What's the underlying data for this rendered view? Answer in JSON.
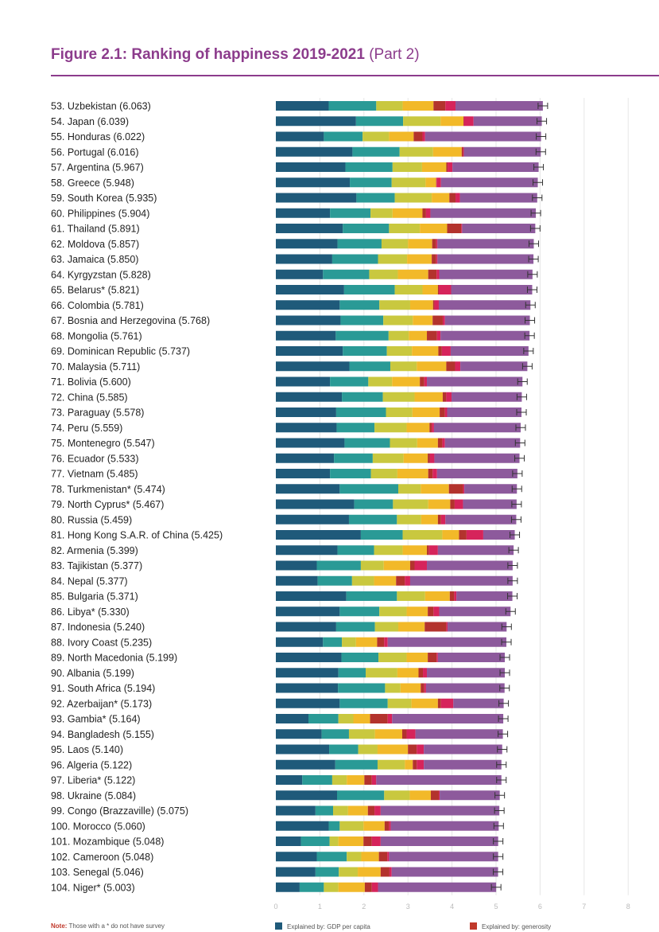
{
  "figure": {
    "title_main": "Figure 2.1: Ranking of happiness 2019-2021",
    "title_part": "(Part 2)"
  },
  "footer": {
    "note_label": "Note:",
    "note_text": "Those with a * do not have survey",
    "legend": [
      {
        "label": "Explained by: GDP per capita",
        "color": "#1f5a7a"
      },
      {
        "label": "Explained by: generosity",
        "color": "#c0392b"
      }
    ]
  },
  "colors": {
    "gdp": "#1f5a7a",
    "social_support": "#2a9a96",
    "healthy_life": "#c9c83f",
    "freedom": "#f2b929",
    "generosity": "#b3332d",
    "corruption": "#d6245b",
    "dystopia": "#8d5a9c",
    "error_bar": "#333333",
    "gridline": "#e6e6e6"
  },
  "chart_data": {
    "type": "bar",
    "orientation": "horizontal",
    "stacked": true,
    "xlim": [
      0,
      8
    ],
    "x_ticks": [
      "0",
      "1",
      "2",
      "3",
      "4",
      "5",
      "6",
      "7",
      "8"
    ],
    "grid": true,
    "error_bars": true,
    "segments": [
      "gdp",
      "social_support",
      "healthy_life",
      "freedom",
      "generosity",
      "corruption",
      "dystopia"
    ],
    "rows": [
      {
        "label": "53.  Uzbekistan (6.063)",
        "total": 6.063,
        "parts": [
          1.2,
          1.08,
          0.6,
          0.7,
          0.27,
          0.23
        ]
      },
      {
        "label": "54.  Japan (6.039)",
        "total": 6.039,
        "parts": [
          1.82,
          1.07,
          0.85,
          0.52,
          0.01,
          0.22
        ]
      },
      {
        "label": "55.  Honduras (6.022)",
        "total": 6.022,
        "parts": [
          1.09,
          0.88,
          0.6,
          0.56,
          0.2,
          0.06
        ]
      },
      {
        "label": "56.  Portugal (6.016)",
        "total": 6.016,
        "parts": [
          1.74,
          1.07,
          0.76,
          0.65,
          0.03,
          0.02
        ]
      },
      {
        "label": "57.  Argentina (5.967)",
        "total": 5.967,
        "parts": [
          1.58,
          1.07,
          0.67,
          0.55,
          0.03,
          0.11
        ]
      },
      {
        "label": "58.  Greece (5.948)",
        "total": 5.948,
        "parts": [
          1.68,
          0.95,
          0.77,
          0.24,
          0.01,
          0.1
        ]
      },
      {
        "label": "59.  South Korea (5.935)",
        "total": 5.935,
        "parts": [
          1.83,
          0.87,
          0.84,
          0.4,
          0.14,
          0.1
        ]
      },
      {
        "label": "60.  Philippines (5.904)",
        "total": 5.904,
        "parts": [
          1.23,
          0.92,
          0.5,
          0.68,
          0.08,
          0.1
        ]
      },
      {
        "label": "61.  Thailand (5.891)",
        "total": 5.891,
        "parts": [
          1.52,
          1.05,
          0.7,
          0.62,
          0.32,
          0.02
        ]
      },
      {
        "label": "62.  Moldova (5.857)",
        "total": 5.857,
        "parts": [
          1.4,
          1.0,
          0.6,
          0.55,
          0.09,
          0.03
        ]
      },
      {
        "label": "63.  Jamaica (5.850)",
        "total": 5.85,
        "parts": [
          1.28,
          1.04,
          0.66,
          0.56,
          0.1,
          0.03
        ]
      },
      {
        "label": "64.  Kyrgyzstan (5.828)",
        "total": 5.828,
        "parts": [
          1.07,
          1.05,
          0.65,
          0.69,
          0.19,
          0.06
        ]
      },
      {
        "label": "65.  Belarus* (5.821)",
        "total": 5.821,
        "parts": [
          1.55,
          1.15,
          0.63,
          0.35,
          0.02,
          0.28
        ]
      },
      {
        "label": "66.  Colombia (5.781)",
        "total": 5.781,
        "parts": [
          1.45,
          0.9,
          0.7,
          0.52,
          0.03,
          0.1
        ]
      },
      {
        "label": "67.  Bosnia and Herzegovina (5.768)",
        "total": 5.768,
        "parts": [
          1.47,
          0.97,
          0.67,
          0.45,
          0.23,
          0.05
        ]
      },
      {
        "label": "68.  Mongolia (5.761)",
        "total": 5.761,
        "parts": [
          1.36,
          1.2,
          0.46,
          0.41,
          0.23,
          0.08
        ]
      },
      {
        "label": "69.  Dominican Republic (5.737)",
        "total": 5.737,
        "parts": [
          1.52,
          1.0,
          0.57,
          0.6,
          0.08,
          0.2
        ]
      },
      {
        "label": "70.  Malaysia (5.711)",
        "total": 5.711,
        "parts": [
          1.67,
          0.93,
          0.6,
          0.67,
          0.2,
          0.12
        ]
      },
      {
        "label": "71.  Bolivia (5.600)",
        "total": 5.6,
        "parts": [
          1.23,
          0.87,
          0.54,
          0.63,
          0.1,
          0.06
        ]
      },
      {
        "label": "72.  China (5.585)",
        "total": 5.585,
        "parts": [
          1.5,
          0.93,
          0.72,
          0.64,
          0.08,
          0.12
        ]
      },
      {
        "label": "73.  Paraguay (5.578)",
        "total": 5.578,
        "parts": [
          1.37,
          1.13,
          0.6,
          0.62,
          0.12,
          0.05
        ]
      },
      {
        "label": "74.  Peru (5.559)",
        "total": 5.559,
        "parts": [
          1.38,
          0.86,
          0.73,
          0.52,
          0.05,
          0.05
        ]
      },
      {
        "label": "75.  Montenegro (5.547)",
        "total": 5.547,
        "parts": [
          1.56,
          1.03,
          0.62,
          0.47,
          0.1,
          0.06
        ]
      },
      {
        "label": "76.  Ecuador (5.533)",
        "total": 5.533,
        "parts": [
          1.32,
          0.88,
          0.7,
          0.55,
          0.05,
          0.1
        ]
      },
      {
        "label": "77.  Vietnam (5.485)",
        "total": 5.485,
        "parts": [
          1.23,
          0.93,
          0.6,
          0.7,
          0.1,
          0.1
        ]
      },
      {
        "label": "78.  Turkmenistan* (5.474)",
        "total": 5.474,
        "parts": [
          1.45,
          1.33,
          0.51,
          0.64,
          0.32,
          0.03
        ]
      },
      {
        "label": "79.  North Cyprus* (5.467)",
        "total": 5.467,
        "parts": [
          1.78,
          0.88,
          0.8,
          0.5,
          0.1,
          0.19
        ]
      },
      {
        "label": "80.  Russia (5.459)",
        "total": 5.459,
        "parts": [
          1.66,
          1.09,
          0.55,
          0.38,
          0.07,
          0.1
        ]
      },
      {
        "label": "81.  Hong Kong S.A.R. of China (5.425)",
        "total": 5.425,
        "parts": [
          1.93,
          0.95,
          0.9,
          0.38,
          0.17,
          0.38
        ]
      },
      {
        "label": "82.  Armenia (5.399)",
        "total": 5.399,
        "parts": [
          1.4,
          0.83,
          0.65,
          0.55,
          0.05,
          0.2
        ]
      },
      {
        "label": "83.  Tajikistan (5.377)",
        "total": 5.377,
        "parts": [
          0.93,
          1.0,
          0.52,
          0.6,
          0.1,
          0.28
        ]
      },
      {
        "label": "84.  Nepal (5.377)",
        "total": 5.377,
        "parts": [
          0.95,
          0.78,
          0.5,
          0.5,
          0.2,
          0.12
        ]
      },
      {
        "label": "85.  Bulgaria (5.371)",
        "total": 5.371,
        "parts": [
          1.6,
          1.15,
          0.64,
          0.56,
          0.1,
          0.05
        ]
      },
      {
        "label": "86.  Libya* (5.330)",
        "total": 5.33,
        "parts": [
          1.45,
          0.9,
          0.62,
          0.48,
          0.13,
          0.13
        ]
      },
      {
        "label": "87.  Indonesia (5.240)",
        "total": 5.24,
        "parts": [
          1.37,
          0.88,
          0.53,
          0.6,
          0.49,
          0.03
        ]
      },
      {
        "label": "88.  Ivory Coast (5.235)",
        "total": 5.235,
        "parts": [
          1.07,
          0.43,
          0.32,
          0.48,
          0.16,
          0.08
        ]
      },
      {
        "label": "89.  North Macedonia (5.199)",
        "total": 5.199,
        "parts": [
          1.49,
          0.84,
          0.64,
          0.48,
          0.2,
          0.03
        ]
      },
      {
        "label": "90.  Albania (5.199)",
        "total": 5.199,
        "parts": [
          1.42,
          0.62,
          0.72,
          0.48,
          0.1,
          0.09
        ]
      },
      {
        "label": "91.  South Africa (5.194)",
        "total": 5.194,
        "parts": [
          1.41,
          1.07,
          0.35,
          0.46,
          0.08,
          0.04
        ]
      },
      {
        "label": "92.  Azerbaijan* (5.173)",
        "total": 5.173,
        "parts": [
          1.45,
          1.09,
          0.54,
          0.6,
          0.07,
          0.28
        ]
      },
      {
        "label": "93.  Gambia* (5.164)",
        "total": 5.164,
        "parts": [
          0.74,
          0.68,
          0.34,
          0.38,
          0.4,
          0.1
        ]
      },
      {
        "label": "94.  Bangladesh (5.155)",
        "total": 5.155,
        "parts": [
          1.04,
          0.62,
          0.59,
          0.62,
          0.1,
          0.2
        ]
      },
      {
        "label": "95.  Laos (5.140)",
        "total": 5.14,
        "parts": [
          1.21,
          0.66,
          0.44,
          0.69,
          0.2,
          0.16
        ]
      },
      {
        "label": "96.  Algeria (5.122)",
        "total": 5.122,
        "parts": [
          1.35,
          0.96,
          0.62,
          0.18,
          0.09,
          0.16
        ]
      },
      {
        "label": "97.  Liberia* (5.122)",
        "total": 5.122,
        "parts": [
          0.6,
          0.68,
          0.33,
          0.4,
          0.17,
          0.1
        ]
      },
      {
        "label": "98.  Ukraine (5.084)",
        "total": 5.084,
        "parts": [
          1.39,
          1.07,
          0.58,
          0.48,
          0.18,
          0.02
        ]
      },
      {
        "label": "99.  Congo (Brazzaville) (5.075)",
        "total": 5.075,
        "parts": [
          0.9,
          0.4,
          0.34,
          0.45,
          0.15,
          0.14
        ]
      },
      {
        "label": "100. Morocco (5.060)",
        "total": 5.06,
        "parts": [
          1.2,
          0.25,
          0.54,
          0.48,
          0.1,
          0.04
        ]
      },
      {
        "label": "101. Mozambique (5.048)",
        "total": 5.048,
        "parts": [
          0.57,
          0.65,
          0.2,
          0.57,
          0.19,
          0.2
        ]
      },
      {
        "label": "102. Cameroon (5.048)",
        "total": 5.048,
        "parts": [
          0.93,
          0.68,
          0.33,
          0.4,
          0.19,
          0.04
        ]
      },
      {
        "label": "103. Senegal (5.046)",
        "total": 5.046,
        "parts": [
          0.9,
          0.53,
          0.43,
          0.52,
          0.2,
          0.05
        ]
      },
      {
        "label": "104. Niger* (5.003)",
        "total": 5.003,
        "parts": [
          0.54,
          0.55,
          0.33,
          0.6,
          0.16,
          0.14
        ]
      }
    ]
  }
}
